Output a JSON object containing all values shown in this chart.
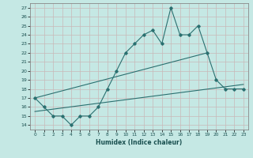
{
  "title": "",
  "xlabel": "Humidex (Indice chaleur)",
  "background_color": "#c5e8e4",
  "grid_color": "#c8b8b8",
  "line_color": "#2a7070",
  "xlim": [
    -0.5,
    23.5
  ],
  "ylim": [
    13.5,
    27.5
  ],
  "yticks": [
    14,
    15,
    16,
    17,
    18,
    19,
    20,
    21,
    22,
    23,
    24,
    25,
    26,
    27
  ],
  "xticks": [
    0,
    1,
    2,
    3,
    4,
    5,
    6,
    7,
    8,
    9,
    10,
    11,
    12,
    13,
    14,
    15,
    16,
    17,
    18,
    19,
    20,
    21,
    22,
    23
  ],
  "series1": [
    17,
    16,
    15,
    15,
    14,
    15,
    15,
    16,
    18,
    20,
    22,
    23,
    24,
    24.5,
    23,
    27,
    24,
    24,
    25,
    22,
    19,
    18,
    18,
    18
  ],
  "series2_x": [
    0,
    19
  ],
  "series2_y": [
    17,
    22
  ],
  "series3_x": [
    0,
    23
  ],
  "series3_y": [
    15.5,
    18.5
  ]
}
